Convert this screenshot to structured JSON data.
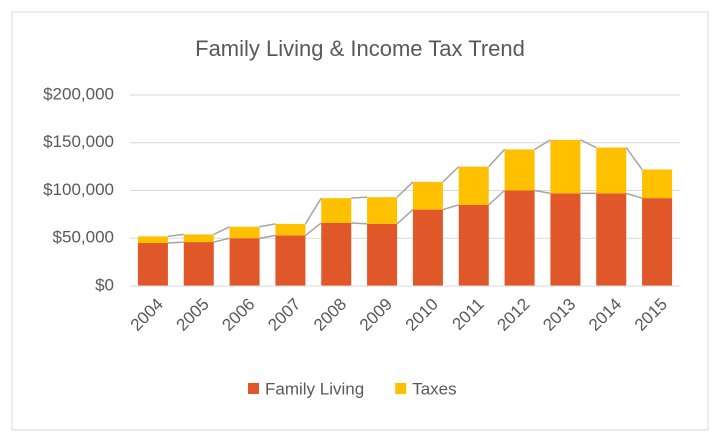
{
  "chart_data": {
    "type": "stacked-bar",
    "title": "Family Living & Income Tax Trend",
    "categories": [
      "2004",
      "2005",
      "2006",
      "2007",
      "2008",
      "2009",
      "2010",
      "2011",
      "2012",
      "2013",
      "2014",
      "2015"
    ],
    "series": [
      {
        "name": "Family Living",
        "color": "#e0572a",
        "values": [
          45000,
          46000,
          50000,
          53000,
          66000,
          65000,
          80000,
          85000,
          100000,
          97000,
          97000,
          92000
        ]
      },
      {
        "name": "Taxes",
        "color": "#ffc000",
        "values": [
          7000,
          8000,
          12000,
          12000,
          26000,
          28000,
          29000,
          40000,
          43000,
          56000,
          48000,
          30000
        ]
      }
    ],
    "ylim": [
      0,
      200000
    ],
    "yticks": [
      {
        "value": 0,
        "label": "$0"
      },
      {
        "value": 50000,
        "label": "$50,000"
      },
      {
        "value": 100000,
        "label": "$100,000"
      },
      {
        "value": 150000,
        "label": "$150,000"
      },
      {
        "value": 200000,
        "label": "$200,000"
      }
    ],
    "grid": true,
    "legend": "bottom"
  }
}
